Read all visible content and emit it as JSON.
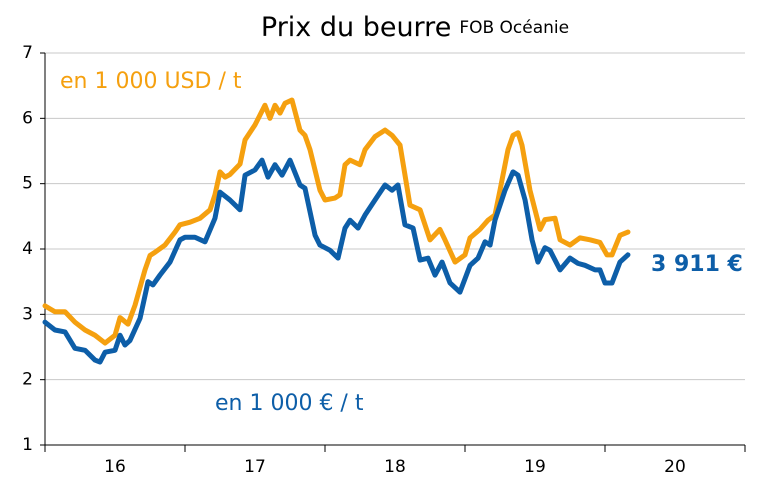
{
  "chart_data": {
    "type": "line",
    "title": "Prix du beurre",
    "subtitle": "FOB Océanie",
    "xlim": [
      2016,
      2021
    ],
    "xticks": [
      2016,
      2017,
      2018,
      2019,
      2020,
      2021
    ],
    "xlabels": [
      {
        "value": 2016.5,
        "label": "16"
      },
      {
        "value": 2017.5,
        "label": "17"
      },
      {
        "value": 2018.5,
        "label": "18"
      },
      {
        "value": 2019.5,
        "label": "19"
      },
      {
        "value": 2020.5,
        "label": "20"
      }
    ],
    "ylim": [
      1,
      7
    ],
    "yticks": [
      1,
      2,
      3,
      4,
      5,
      6,
      7
    ],
    "grid": true,
    "series": [
      {
        "name": "en 1 000 USD / t",
        "color": "#f5a00f",
        "x": [
          2016,
          2016.071,
          2016.143,
          2016.214,
          2016.286,
          2016.357,
          2016.429,
          2016.5,
          2016.536,
          2016.593,
          2016.643,
          2016.714,
          2016.75,
          2016.786,
          2016.857,
          2016.929,
          2016.964,
          2017.036,
          2017.107,
          2017.179,
          2017.214,
          2017.25,
          2017.286,
          2017.321,
          2017.393,
          2017.429,
          2017.5,
          2017.571,
          2017.607,
          2017.643,
          2017.679,
          2017.714,
          2017.764,
          2017.821,
          2017.857,
          2017.893,
          2017.964,
          2018,
          2018.071,
          2018.107,
          2018.143,
          2018.179,
          2018.25,
          2018.286,
          2018.357,
          2018.429,
          2018.479,
          2018.536,
          2018.607,
          2018.679,
          2018.75,
          2018.821,
          2018.857,
          2018.929,
          2019,
          2019.036,
          2019.107,
          2019.164,
          2019.214,
          2019.25,
          2019.307,
          2019.343,
          2019.379,
          2019.407,
          2019.464,
          2019.536,
          2019.571,
          2019.643,
          2019.679,
          2019.75,
          2019.821,
          2019.893,
          2019.964,
          2020.014,
          2020.05,
          2020.107,
          2020.164
        ],
        "values": [
          3.13,
          3.04,
          3.04,
          2.88,
          2.76,
          2.68,
          2.56,
          2.68,
          2.95,
          2.85,
          3.14,
          3.68,
          3.9,
          3.95,
          4.06,
          4.26,
          4.37,
          4.41,
          4.47,
          4.6,
          4.83,
          5.18,
          5.1,
          5.14,
          5.3,
          5.67,
          5.9,
          6.2,
          6.0,
          6.2,
          6.08,
          6.23,
          6.28,
          5.82,
          5.74,
          5.52,
          4.9,
          4.75,
          4.78,
          4.83,
          5.29,
          5.36,
          5.29,
          5.52,
          5.72,
          5.82,
          5.74,
          5.59,
          4.67,
          4.6,
          4.14,
          4.3,
          4.14,
          3.8,
          3.91,
          4.17,
          4.3,
          4.44,
          4.52,
          4.9,
          5.52,
          5.74,
          5.78,
          5.59,
          4.9,
          4.3,
          4.45,
          4.47,
          4.14,
          4.06,
          4.17,
          4.14,
          4.1,
          3.91,
          3.91,
          4.21,
          4.26
        ]
      },
      {
        "name": "en 1 000 € / t",
        "color": "#0d5ea8",
        "x": [
          2016,
          2016.071,
          2016.143,
          2016.214,
          2016.286,
          2016.357,
          2016.393,
          2016.429,
          2016.5,
          2016.536,
          2016.571,
          2016.607,
          2016.679,
          2016.736,
          2016.771,
          2016.821,
          2016.893,
          2016.964,
          2017,
          2017.071,
          2017.143,
          2017.214,
          2017.25,
          2017.321,
          2017.393,
          2017.429,
          2017.5,
          2017.55,
          2017.593,
          2017.643,
          2017.693,
          2017.75,
          2017.821,
          2017.857,
          2017.929,
          2017.964,
          2018.036,
          2018.093,
          2018.143,
          2018.179,
          2018.236,
          2018.286,
          2018.357,
          2018.429,
          2018.479,
          2018.521,
          2018.571,
          2018.629,
          2018.679,
          2018.736,
          2018.786,
          2018.836,
          2018.893,
          2018.964,
          2019.036,
          2019.093,
          2019.143,
          2019.179,
          2019.214,
          2019.286,
          2019.343,
          2019.379,
          2019.429,
          2019.479,
          2019.521,
          2019.571,
          2019.607,
          2019.679,
          2019.75,
          2019.807,
          2019.857,
          2019.929,
          2019.964,
          2020,
          2020.05,
          2020.107,
          2020.164
        ],
        "values": [
          2.88,
          2.76,
          2.73,
          2.48,
          2.45,
          2.3,
          2.27,
          2.42,
          2.45,
          2.68,
          2.53,
          2.6,
          2.94,
          3.5,
          3.45,
          3.6,
          3.8,
          4.14,
          4.18,
          4.18,
          4.11,
          4.47,
          4.87,
          4.75,
          4.6,
          5.13,
          5.21,
          5.36,
          5.1,
          5.29,
          5.13,
          5.36,
          4.98,
          4.93,
          4.21,
          4.06,
          3.98,
          3.86,
          4.32,
          4.44,
          4.32,
          4.52,
          4.75,
          4.98,
          4.9,
          4.98,
          4.37,
          4.32,
          3.83,
          3.86,
          3.6,
          3.8,
          3.48,
          3.34,
          3.75,
          3.86,
          4.11,
          4.06,
          4.44,
          4.9,
          5.18,
          5.13,
          4.75,
          4.14,
          3.8,
          4.02,
          3.98,
          3.68,
          3.86,
          3.78,
          3.75,
          3.68,
          3.68,
          3.48,
          3.48,
          3.8,
          3.911
        ]
      }
    ],
    "annotations": [
      {
        "text": "3 911 €",
        "x": 2020.164,
        "y": 3.911
      }
    ]
  }
}
